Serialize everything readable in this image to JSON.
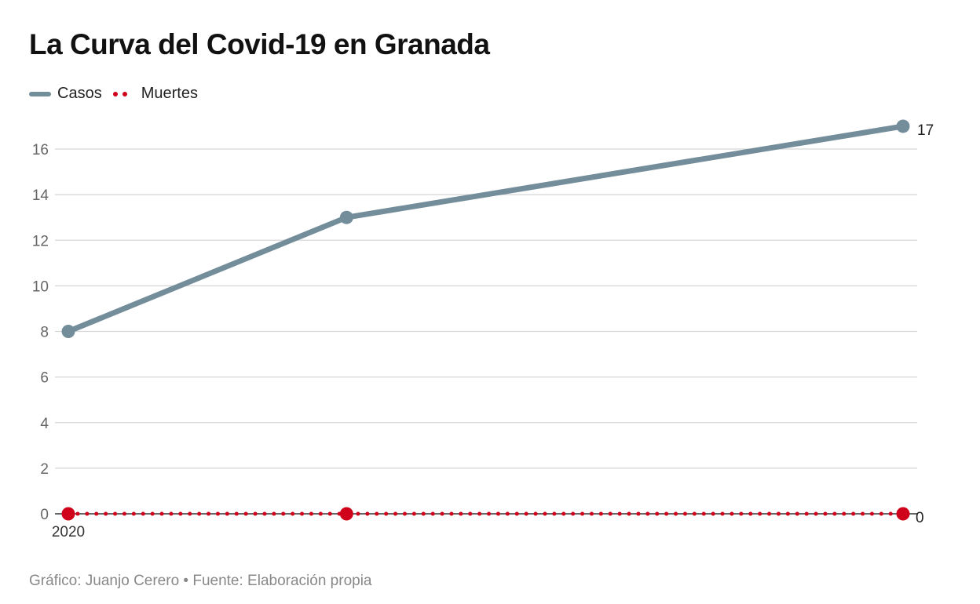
{
  "chart_data": {
    "type": "line",
    "title": "La Curva del Covid-19 en Granada",
    "xlabel": "",
    "ylabel": "",
    "x": [
      0,
      1,
      3
    ],
    "x_tick_labels": [
      {
        "x": 0,
        "label": "2020"
      }
    ],
    "ylim": [
      0,
      16
    ],
    "y_ticks": [
      0,
      2,
      4,
      6,
      8,
      10,
      12,
      14,
      16
    ],
    "grid": true,
    "legend_position": "top-left",
    "series": [
      {
        "name": "Casos",
        "values": [
          8,
          13,
          17
        ],
        "color": "#748d9a",
        "style": "solid",
        "end_label": "17"
      },
      {
        "name": "Muertes",
        "values": [
          0,
          0,
          0
        ],
        "color": "#d0021b",
        "style": "dotted",
        "end_label": "0"
      }
    ]
  },
  "footer": "Gráfico: Juanjo Cerero • Fuente: Elaboración propia"
}
